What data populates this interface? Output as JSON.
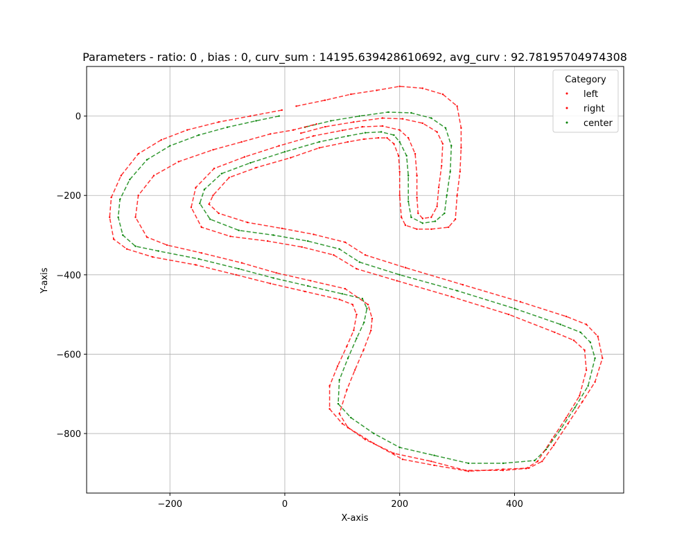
{
  "chart_data": {
    "type": "line",
    "title": "Parameters - ratio: 0 , bias : 0, curv_sum : 14195.639428610692, avg_curv : 92.78195704974308",
    "xlabel": "X-axis",
    "ylabel": "Y-axis",
    "xlim": [
      -345,
      590
    ],
    "ylim": [
      -950,
      125
    ],
    "xticks": [
      -200,
      0,
      200,
      400
    ],
    "yticks": [
      0,
      -200,
      -400,
      -600,
      -800
    ],
    "xtick_labels": [
      "−200",
      "0",
      "200",
      "400"
    ],
    "ytick_labels": [
      "0",
      "−200",
      "−400",
      "−600",
      "−800"
    ],
    "grid": true,
    "legend": {
      "title": "Category",
      "placement": "top-right",
      "entries": [
        "left",
        "right",
        "center"
      ]
    },
    "colors": {
      "left": "#ff0000",
      "right": "#ff0000",
      "center": "#008000"
    },
    "series": [
      {
        "name": "center",
        "points": [
          [
            -10,
            0
          ],
          [
            -50,
            -12
          ],
          [
            -100,
            -28
          ],
          [
            -150,
            -48
          ],
          [
            -200,
            -75
          ],
          [
            -240,
            -110
          ],
          [
            -270,
            -160
          ],
          [
            -287,
            -210
          ],
          [
            -290,
            -255
          ],
          [
            -282,
            -300
          ],
          [
            -260,
            -328
          ],
          [
            -220,
            -340
          ],
          [
            -150,
            -360
          ],
          [
            -80,
            -385
          ],
          [
            -20,
            -408
          ],
          [
            40,
            -428
          ],
          [
            100,
            -448
          ],
          [
            135,
            -460
          ],
          [
            143,
            -485
          ],
          [
            138,
            -520
          ],
          [
            125,
            -560
          ],
          [
            110,
            -610
          ],
          [
            95,
            -665
          ],
          [
            93,
            -725
          ],
          [
            115,
            -760
          ],
          [
            155,
            -800
          ],
          [
            200,
            -835
          ],
          [
            260,
            -855
          ],
          [
            320,
            -875
          ],
          [
            380,
            -875
          ],
          [
            435,
            -868
          ],
          [
            455,
            -840
          ],
          [
            480,
            -790
          ],
          [
            505,
            -735
          ],
          [
            528,
            -680
          ],
          [
            540,
            -610
          ],
          [
            532,
            -570
          ],
          [
            515,
            -545
          ],
          [
            480,
            -525
          ],
          [
            400,
            -485
          ],
          [
            300,
            -440
          ],
          [
            200,
            -400
          ],
          [
            130,
            -368
          ],
          [
            95,
            -335
          ],
          [
            40,
            -315
          ],
          [
            -20,
            -300
          ],
          [
            -80,
            -288
          ],
          [
            -130,
            -260
          ],
          [
            -148,
            -220
          ],
          [
            -140,
            -185
          ],
          [
            -110,
            -145
          ],
          [
            -60,
            -118
          ],
          [
            0,
            -90
          ],
          [
            60,
            -65
          ],
          [
            110,
            -50
          ],
          [
            140,
            -42
          ],
          [
            168,
            -40
          ],
          [
            190,
            -48
          ],
          [
            200,
            -65
          ],
          [
            212,
            -100
          ],
          [
            215,
            -150
          ],
          [
            215,
            -215
          ],
          [
            220,
            -255
          ],
          [
            240,
            -270
          ],
          [
            262,
            -265
          ],
          [
            278,
            -245
          ],
          [
            282,
            -200
          ],
          [
            288,
            -140
          ],
          [
            290,
            -75
          ],
          [
            280,
            -30
          ],
          [
            255,
            -5
          ],
          [
            220,
            8
          ],
          [
            180,
            10
          ],
          [
            130,
            0
          ],
          [
            80,
            -12
          ],
          [
            35,
            -28
          ]
        ]
      },
      {
        "name": "left",
        "points": [
          [
            -5,
            15
          ],
          [
            -60,
            0
          ],
          [
            -115,
            -15
          ],
          [
            -170,
            -35
          ],
          [
            -215,
            -60
          ],
          [
            -255,
            -95
          ],
          [
            -285,
            -150
          ],
          [
            -302,
            -205
          ],
          [
            -305,
            -255
          ],
          [
            -298,
            -310
          ],
          [
            -275,
            -335
          ],
          [
            -230,
            -355
          ],
          [
            -155,
            -375
          ],
          [
            -85,
            -400
          ],
          [
            -25,
            -422
          ],
          [
            35,
            -442
          ],
          [
            95,
            -462
          ],
          [
            118,
            -475
          ],
          [
            125,
            -500
          ],
          [
            120,
            -540
          ],
          [
            108,
            -580
          ],
          [
            92,
            -630
          ],
          [
            78,
            -680
          ],
          [
            78,
            -738
          ],
          [
            100,
            -775
          ],
          [
            140,
            -815
          ],
          [
            190,
            -850
          ],
          [
            255,
            -870
          ],
          [
            315,
            -893
          ],
          [
            380,
            -893
          ],
          [
            420,
            -888
          ],
          [
            440,
            -870
          ],
          [
            465,
            -815
          ],
          [
            490,
            -760
          ],
          [
            513,
            -705
          ],
          [
            525,
            -640
          ],
          [
            522,
            -590
          ],
          [
            503,
            -565
          ],
          [
            470,
            -545
          ],
          [
            390,
            -500
          ],
          [
            290,
            -455
          ],
          [
            195,
            -415
          ],
          [
            125,
            -385
          ],
          [
            85,
            -350
          ],
          [
            30,
            -330
          ],
          [
            -30,
            -315
          ],
          [
            -95,
            -303
          ],
          [
            -145,
            -280
          ],
          [
            -163,
            -230
          ],
          [
            -155,
            -180
          ],
          [
            -123,
            -132
          ],
          [
            -70,
            -103
          ],
          [
            -10,
            -75
          ],
          [
            50,
            -50
          ],
          [
            100,
            -36
          ],
          [
            135,
            -27
          ],
          [
            170,
            -25
          ],
          [
            200,
            -35
          ],
          [
            215,
            -55
          ],
          [
            227,
            -95
          ],
          [
            230,
            -150
          ],
          [
            230,
            -205
          ],
          [
            232,
            -245
          ],
          [
            240,
            -258
          ],
          [
            255,
            -255
          ],
          [
            265,
            -228
          ],
          [
            268,
            -180
          ],
          [
            273,
            -125
          ],
          [
            275,
            -70
          ],
          [
            265,
            -40
          ],
          [
            240,
            -18
          ],
          [
            205,
            -7
          ],
          [
            170,
            -5
          ],
          [
            120,
            -15
          ],
          [
            70,
            -27
          ],
          [
            28,
            -43
          ]
        ]
      },
      {
        "name": "right",
        "points": [
          [
            20,
            25
          ],
          [
            70,
            40
          ],
          [
            115,
            55
          ],
          [
            160,
            65
          ],
          [
            200,
            75
          ],
          [
            240,
            70
          ],
          [
            275,
            55
          ],
          [
            300,
            25
          ],
          [
            307,
            -30
          ],
          [
            307,
            -80
          ],
          [
            305,
            -140
          ],
          [
            300,
            -200
          ],
          [
            297,
            -260
          ],
          [
            285,
            -280
          ],
          [
            255,
            -285
          ],
          [
            230,
            -285
          ],
          [
            210,
            -275
          ],
          [
            203,
            -255
          ],
          [
            200,
            -200
          ],
          [
            200,
            -140
          ],
          [
            198,
            -100
          ],
          [
            190,
            -70
          ],
          [
            178,
            -55
          ],
          [
            163,
            -55
          ],
          [
            138,
            -58
          ],
          [
            110,
            -65
          ],
          [
            60,
            -80
          ],
          [
            10,
            -105
          ],
          [
            -50,
            -130
          ],
          [
            -97,
            -155
          ],
          [
            -125,
            -200
          ],
          [
            -132,
            -222
          ],
          [
            -115,
            -245
          ],
          [
            -65,
            -268
          ],
          [
            -5,
            -283
          ],
          [
            50,
            -298
          ],
          [
            105,
            -318
          ],
          [
            140,
            -350
          ],
          [
            210,
            -382
          ],
          [
            310,
            -425
          ],
          [
            410,
            -468
          ],
          [
            490,
            -505
          ],
          [
            525,
            -525
          ],
          [
            545,
            -555
          ],
          [
            553,
            -610
          ],
          [
            540,
            -670
          ],
          [
            518,
            -720
          ],
          [
            493,
            -775
          ],
          [
            468,
            -830
          ],
          [
            448,
            -870
          ],
          [
            425,
            -887
          ],
          [
            380,
            -890
          ],
          [
            320,
            -895
          ],
          [
            260,
            -880
          ],
          [
            205,
            -865
          ],
          [
            155,
            -825
          ],
          [
            110,
            -785
          ],
          [
            95,
            -750
          ],
          [
            108,
            -690
          ],
          [
            122,
            -640
          ],
          [
            137,
            -590
          ],
          [
            150,
            -540
          ],
          [
            152,
            -510
          ],
          [
            145,
            -475
          ],
          [
            105,
            -435
          ],
          [
            45,
            -415
          ],
          [
            -15,
            -395
          ],
          [
            -75,
            -370
          ],
          [
            -145,
            -345
          ],
          [
            -205,
            -325
          ],
          [
            -240,
            -305
          ],
          [
            -260,
            -255
          ],
          [
            -255,
            -200
          ],
          [
            -228,
            -150
          ],
          [
            -185,
            -115
          ],
          [
            -125,
            -85
          ],
          [
            -75,
            -65
          ],
          [
            -25,
            -45
          ],
          [
            15,
            -35
          ],
          [
            55,
            -20
          ]
        ]
      }
    ]
  }
}
